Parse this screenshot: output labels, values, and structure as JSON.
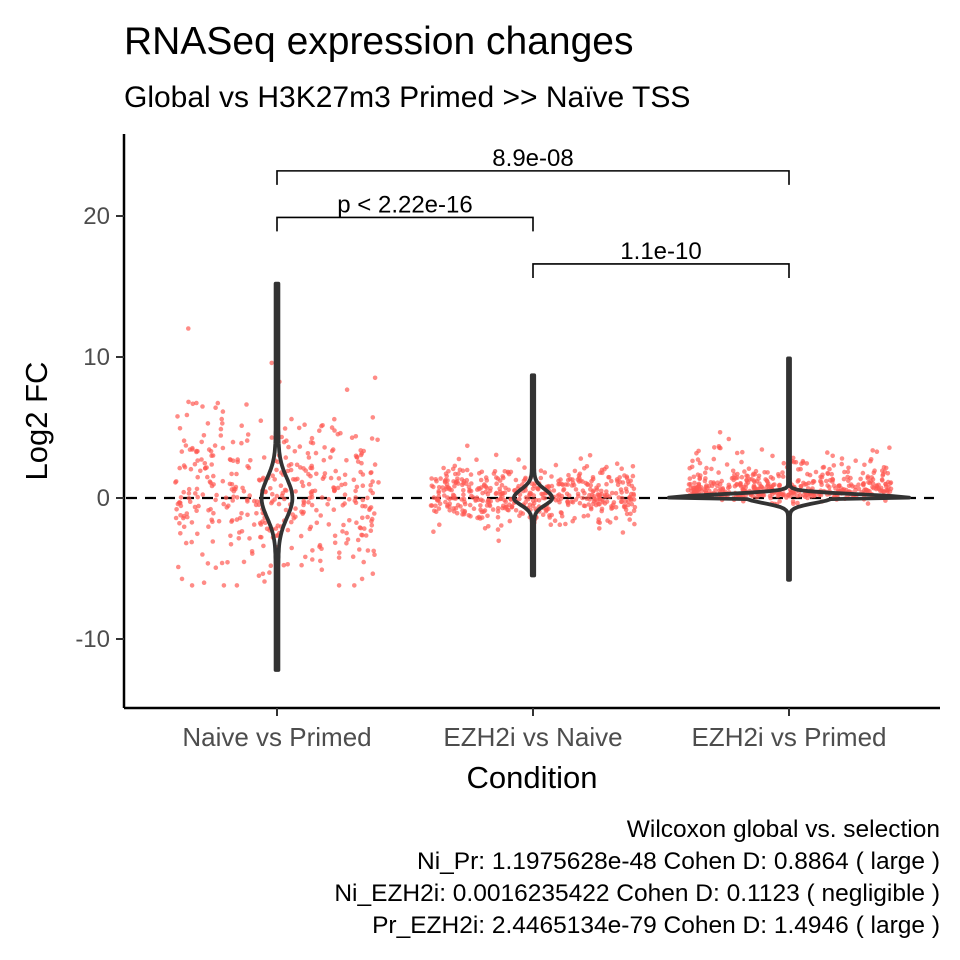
{
  "chart_data": {
    "type": "violin",
    "title": "RNASeq expression changes",
    "subtitle": "Global vs H3K27m3 Primed >> Naïve TSS",
    "xlabel": "Condition",
    "ylabel": "Log2 FC",
    "categories": [
      "Naive vs Primed",
      "EZH2i vs Naive",
      "EZH2i vs Primed"
    ],
    "y_ticks": [
      -10,
      0,
      10,
      20
    ],
    "y_tick_labels": [
      "-10",
      "0",
      "10",
      "20"
    ],
    "ylim": [
      -15,
      25.8
    ],
    "reference_line": {
      "y": 0,
      "style": "dashed"
    },
    "point_color": "#ff5a52",
    "violin_color": "#333333",
    "series": [
      {
        "category": "Naive vs Primed",
        "violin_range": [
          -12.2,
          15.2
        ],
        "points_range": [
          -6.2,
          13.2
        ],
        "point_spread": 3.0
      },
      {
        "category": "EZH2i vs Naive",
        "violin_range": [
          -5.5,
          8.7
        ],
        "points_range": [
          -3.1,
          7.5
        ],
        "point_spread": 1.1
      },
      {
        "category": "EZH2i vs Primed",
        "violin_range": [
          -5.8,
          9.9
        ],
        "points_range": [
          -0.9,
          6.4
        ],
        "point_spread": 1.0
      }
    ],
    "comparisons": [
      {
        "from": "Naive vs Primed",
        "to": "EZH2i vs Primed",
        "label": "8.9e-08",
        "y": 23.2
      },
      {
        "from": "Naive vs Primed",
        "to": "EZH2i vs Naive",
        "label": "p < 2.22e-16",
        "y": 19.9
      },
      {
        "from": "EZH2i vs Naive",
        "to": "EZH2i vs Primed",
        "label": "1.1e-10",
        "y": 16.6
      }
    ],
    "caption": [
      "Wilcoxon global vs. selection",
      "Ni_Pr: 1.1975628e-48 Cohen D: 0.8864 ( large )",
      "Ni_EZH2i: 0.0016235422 Cohen D: 0.1123 ( negligible )",
      "Pr_EZH2i: 2.4465134e-79 Cohen D: 1.4946 ( large )"
    ]
  }
}
